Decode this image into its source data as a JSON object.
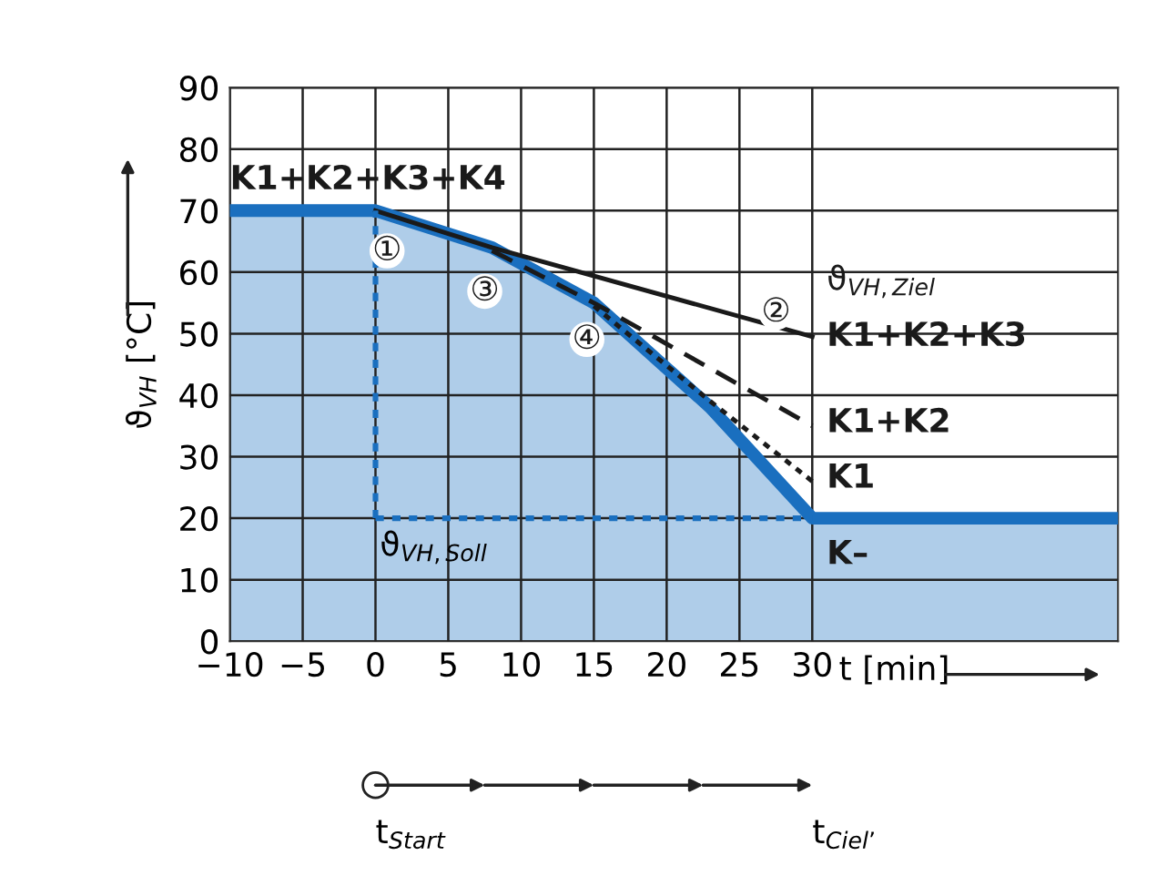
{
  "chart_data": {
    "type": "line",
    "xlabel": "t [min]",
    "ylabel": "ϑ$_{VH}$ [°C]",
    "xlim": [
      -10,
      51
    ],
    "xticks": [
      {
        "value": -10,
        "label": "−10"
      },
      {
        "value": -5,
        "label": "−5"
      },
      0,
      5,
      10,
      15,
      20,
      25,
      30
    ],
    "ylim": [
      0,
      90
    ],
    "yticks": [
      0,
      10,
      20,
      30,
      40,
      50,
      60,
      70,
      80,
      90
    ],
    "grid": true,
    "series": [
      {
        "type": "area",
        "color": "#1a6fbf",
        "x": [
          -10,
          0,
          8,
          15,
          23,
          30,
          51
        ],
        "values": [
          70,
          70,
          64,
          55,
          38,
          20,
          20
        ]
      },
      {
        "color": "#1a1a1a",
        "line_style": "solid",
        "x": [
          0,
          8,
          30
        ],
        "values": [
          70,
          64,
          49.5
        ]
      },
      {
        "color": "#1a1a1a",
        "line_style": "dashed",
        "x": [
          8,
          15,
          30
        ],
        "values": [
          63.5,
          55,
          35
        ]
      },
      {
        "color": "#1a1a1a",
        "line_style": "dotted",
        "x": [
          15,
          23,
          30
        ],
        "values": [
          54.5,
          39,
          26
        ]
      }
    ],
    "ref_lines": [
      {
        "axis": "y",
        "value": 20,
        "label": "ϑ$_{VH,Soll}$",
        "color": "#1a6fbf",
        "line_style": "dotted"
      },
      {
        "axis": "x",
        "value": 0,
        "color": "#1a6fbf",
        "line_style": "dotted"
      }
    ],
    "annotations": [
      "K1+K2+K3+K4",
      "K1+K2+K3",
      "K1+K2",
      "K1",
      "K–",
      "ϑ$_{VH,Ziel}$",
      "①",
      "②",
      "③",
      "④",
      "t$_{Start}$",
      "t$_{Ciel’}$"
    ]
  }
}
